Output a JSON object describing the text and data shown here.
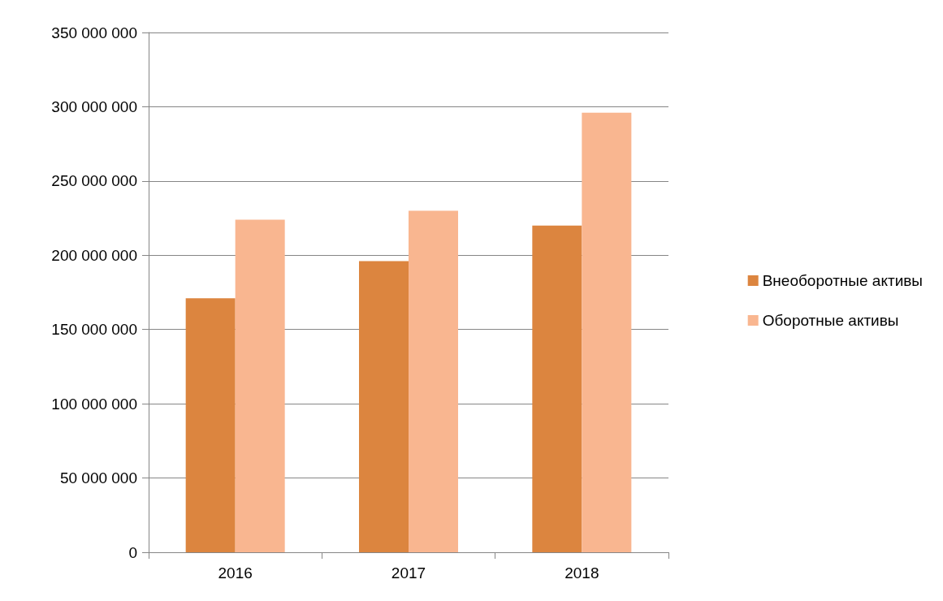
{
  "chart_data": {
    "type": "bar",
    "categories": [
      "2016",
      "2017",
      "2018"
    ],
    "series": [
      {
        "name": "Внеоборотные активы",
        "color": "#dc853f",
        "values": [
          171000000,
          196000000,
          220000000
        ]
      },
      {
        "name": "Оборотные активы",
        "color": "#f9b690",
        "values": [
          224000000,
          230000000,
          296000000
        ]
      }
    ],
    "ylim": [
      0,
      350000000
    ],
    "yticks": [
      0,
      {
        "value": 50000000,
        "label": "50 000 000"
      },
      {
        "value": 100000000,
        "label": "100 000 000"
      },
      {
        "value": 150000000,
        "label": "150 000 000"
      },
      {
        "value": 200000000,
        "label": "200 000 000"
      },
      {
        "value": 250000000,
        "label": "250 000 000"
      },
      {
        "value": 300000000,
        "label": "300 000 000"
      },
      {
        "value": 350000000,
        "label": "350 000 000"
      }
    ],
    "grid": "y",
    "legend": "right"
  }
}
